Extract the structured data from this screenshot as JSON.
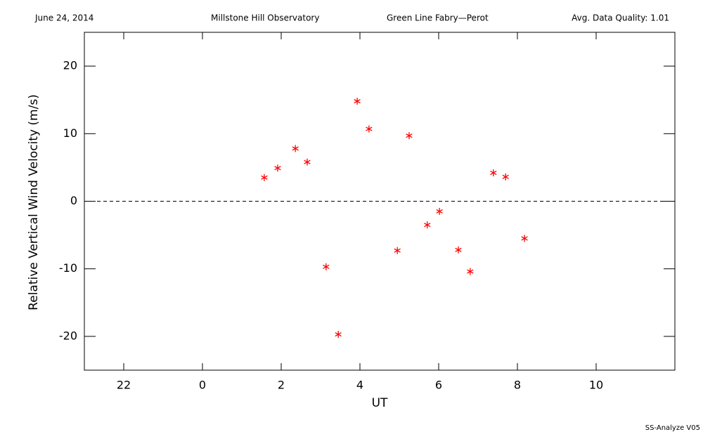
{
  "chart_data": {
    "type": "scatter",
    "header": [
      "June 24, 2014",
      "Millstone Hill Observatory",
      "Green Line Fabry—Perot",
      "Avg. Data Quality: 1.01"
    ],
    "footer": "SS-Analyze V05",
    "xlabel": "UT",
    "ylabel": "Relative Vertical Wind Velocity (m/s)",
    "xlim": [
      -3,
      12
    ],
    "ylim": [
      -25,
      25
    ],
    "xticks": [
      {
        "value": -2,
        "label": "22"
      },
      0,
      2,
      4,
      6,
      8,
      10
    ],
    "yticks": [
      -20,
      -10,
      0,
      10,
      20
    ],
    "zero_line": true,
    "series": [
      {
        "color": "#ff0000",
        "x": [
          1.57,
          1.91,
          2.36,
          2.66,
          3.14,
          3.45,
          3.93,
          4.23,
          4.95,
          5.25,
          5.71,
          6.02,
          6.5,
          6.8,
          7.39,
          7.7,
          8.18
        ],
        "values": [
          3.5,
          4.9,
          7.8,
          5.8,
          -9.7,
          -19.7,
          14.8,
          10.7,
          -7.3,
          9.7,
          -3.5,
          -1.5,
          -7.2,
          -10.4,
          4.2,
          3.6,
          -5.5
        ]
      }
    ]
  }
}
